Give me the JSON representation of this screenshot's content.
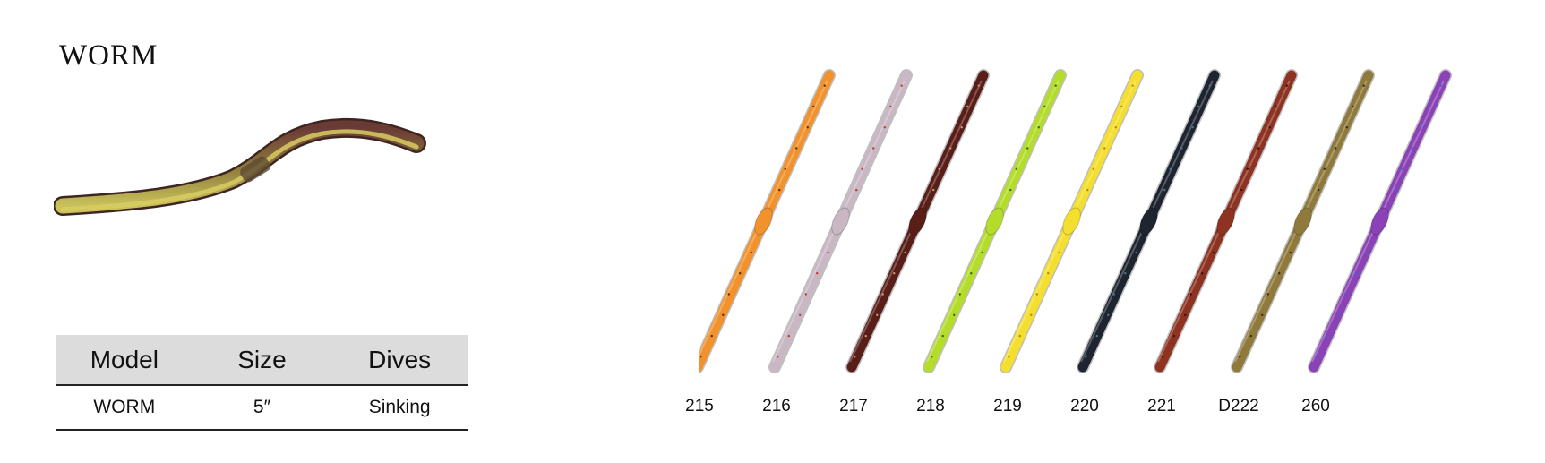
{
  "product": {
    "title": "WORM"
  },
  "specs": {
    "headers": [
      "Model",
      "Size",
      "Dives"
    ],
    "row": [
      "WORM",
      "5″",
      "Sinking"
    ]
  },
  "variants": [
    {
      "code": "215",
      "color": "#f1922d",
      "fleck": "#5a2a10"
    },
    {
      "code": "216",
      "color": "#c9b7c4",
      "fleck": "#c03a20"
    },
    {
      "code": "217",
      "color": "#5a1e19",
      "fleck": "#c89a60"
    },
    {
      "code": "218",
      "color": "#b4dc2a",
      "fleck": "#2e6a1a"
    },
    {
      "code": "219",
      "color": "#f4de2e",
      "fleck": "#b08a10"
    },
    {
      "code": "220",
      "color": "#1e2530",
      "fleck": "#4a7a8a"
    },
    {
      "code": "221",
      "color": "#8e3222",
      "fleck": "#3a120a"
    },
    {
      "code": "D222",
      "color": "#8f7a3c",
      "fleck": "#3a2a14"
    },
    {
      "code": "260",
      "color": "#8a42b6",
      "fleck": "#3a68d0"
    }
  ]
}
